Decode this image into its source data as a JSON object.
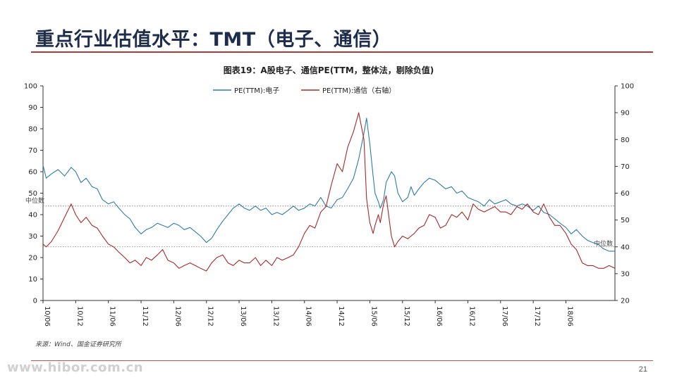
{
  "slide": {
    "title": "重点行业估值水平：TMT（电子、通信）",
    "page_number": "21",
    "watermark": "www.hibor.com.cn"
  },
  "chart_data": {
    "type": "line",
    "title": "图表19：A股电子、通信PE(TTM，整体法，剔除负值)",
    "source": "来源：Wind、国金证券研究所",
    "x_tick_labels": [
      "10/06",
      "10/12",
      "11/06",
      "11/12",
      "12/06",
      "12/12",
      "13/06",
      "13/12",
      "14/06",
      "14/12",
      "15/06",
      "15/12",
      "16/06",
      "16/12",
      "17/06",
      "17/12",
      "18/06"
    ],
    "x_range": [
      2010.42,
      2019.17
    ],
    "left_axis": {
      "range": [
        0,
        100
      ],
      "ticks": [
        0,
        10,
        20,
        30,
        40,
        50,
        60,
        70,
        80,
        90,
        100
      ]
    },
    "right_axis": {
      "range": [
        20,
        100
      ],
      "ticks": [
        20,
        30,
        40,
        50,
        60,
        70,
        80,
        90,
        100
      ]
    },
    "median_label": "中位数",
    "median_left": 44,
    "median_right": 40,
    "grid": false,
    "legend_position": "top",
    "series": [
      {
        "name": "PE(TTM):电子",
        "axis": "left",
        "color": "#2e7ca6",
        "x": [
          2010.42,
          2010.47,
          2010.55,
          2010.65,
          2010.75,
          2010.85,
          2010.92,
          2011.0,
          2011.08,
          2011.17,
          2011.25,
          2011.33,
          2011.42,
          2011.5,
          2011.58,
          2011.67,
          2011.75,
          2011.83,
          2011.92,
          2012.0,
          2012.08,
          2012.17,
          2012.25,
          2012.33,
          2012.42,
          2012.5,
          2012.58,
          2012.67,
          2012.75,
          2012.83,
          2012.92,
          2013.0,
          2013.08,
          2013.17,
          2013.25,
          2013.33,
          2013.42,
          2013.5,
          2013.58,
          2013.67,
          2013.75,
          2013.83,
          2013.92,
          2014.0,
          2014.08,
          2014.17,
          2014.25,
          2014.33,
          2014.42,
          2014.5,
          2014.58,
          2014.67,
          2014.75,
          2014.83,
          2014.92,
          2015.0,
          2015.08,
          2015.17,
          2015.25,
          2015.33,
          2015.37,
          2015.42,
          2015.47,
          2015.5,
          2015.55,
          2015.58,
          2015.63,
          2015.67,
          2015.75,
          2015.8,
          2015.85,
          2015.92,
          2016.0,
          2016.05,
          2016.1,
          2016.17,
          2016.25,
          2016.33,
          2016.42,
          2016.5,
          2016.58,
          2016.67,
          2016.75,
          2016.83,
          2016.92,
          2017.0,
          2017.08,
          2017.17,
          2017.25,
          2017.33,
          2017.42,
          2017.5,
          2017.58,
          2017.67,
          2017.75,
          2017.83,
          2017.92,
          2018.0,
          2018.08,
          2018.17,
          2018.25,
          2018.33,
          2018.42,
          2018.5,
          2018.58,
          2018.67,
          2018.75,
          2018.83,
          2018.92,
          2019.0,
          2019.08,
          2019.17
        ],
        "y": [
          63,
          57,
          59,
          61,
          58,
          62,
          60,
          55,
          57,
          53,
          52,
          47,
          45,
          46,
          43,
          40,
          38,
          34,
          31,
          33,
          34,
          36,
          35,
          34,
          36,
          35,
          33,
          34,
          32,
          30,
          27,
          29,
          33,
          37,
          40,
          43,
          45,
          43,
          42,
          44,
          42,
          43,
          40,
          41,
          40,
          42,
          44,
          42,
          43,
          45,
          44,
          48,
          44,
          43,
          47,
          48,
          52,
          57,
          66,
          78,
          85,
          73,
          58,
          50,
          46,
          43,
          47,
          55,
          60,
          58,
          50,
          46,
          48,
          53,
          49,
          52,
          55,
          57,
          56,
          54,
          52,
          53,
          50,
          51,
          48,
          47,
          46,
          44,
          47,
          45,
          46,
          47,
          45,
          44,
          45,
          44,
          42,
          44,
          41,
          40,
          38,
          36,
          34,
          31,
          33,
          30,
          28,
          27,
          26,
          24,
          23,
          23
        ]
      },
      {
        "name": "PE(TTM):通信（右轴）",
        "axis": "right",
        "color": "#a52a2a",
        "x": [
          2010.42,
          2010.47,
          2010.55,
          2010.65,
          2010.75,
          2010.85,
          2010.92,
          2011.0,
          2011.08,
          2011.17,
          2011.25,
          2011.33,
          2011.42,
          2011.5,
          2011.58,
          2011.67,
          2011.75,
          2011.83,
          2011.92,
          2012.0,
          2012.08,
          2012.17,
          2012.25,
          2012.33,
          2012.42,
          2012.5,
          2012.58,
          2012.67,
          2012.75,
          2012.83,
          2012.92,
          2013.0,
          2013.08,
          2013.17,
          2013.25,
          2013.33,
          2013.42,
          2013.5,
          2013.58,
          2013.67,
          2013.75,
          2013.83,
          2013.92,
          2014.0,
          2014.08,
          2014.17,
          2014.25,
          2014.33,
          2014.42,
          2014.5,
          2014.58,
          2014.67,
          2014.75,
          2014.83,
          2014.92,
          2015.0,
          2015.08,
          2015.17,
          2015.25,
          2015.33,
          2015.37,
          2015.42,
          2015.47,
          2015.5,
          2015.55,
          2015.58,
          2015.63,
          2015.67,
          2015.75,
          2015.8,
          2015.85,
          2015.92,
          2016.0,
          2016.05,
          2016.1,
          2016.17,
          2016.25,
          2016.33,
          2016.42,
          2016.5,
          2016.58,
          2016.67,
          2016.75,
          2016.83,
          2016.92,
          2017.0,
          2017.08,
          2017.17,
          2017.25,
          2017.33,
          2017.42,
          2017.5,
          2017.58,
          2017.67,
          2017.75,
          2017.83,
          2017.92,
          2018.0,
          2018.08,
          2018.17,
          2018.25,
          2018.33,
          2018.42,
          2018.5,
          2018.58,
          2018.67,
          2018.75,
          2018.83,
          2018.92,
          2019.0,
          2019.08,
          2019.17
        ],
        "y": [
          41,
          40,
          42,
          46,
          51,
          56,
          52,
          49,
          51,
          48,
          47,
          44,
          41,
          40,
          38,
          36,
          34,
          35,
          33,
          36,
          35,
          37,
          39,
          35,
          34,
          32,
          33,
          34,
          33,
          32,
          31,
          34,
          36,
          37,
          34,
          33,
          35,
          34,
          34,
          36,
          33,
          35,
          33,
          36,
          35,
          36,
          37,
          40,
          45,
          48,
          47,
          53,
          55,
          63,
          71,
          68,
          77,
          83,
          90,
          80,
          58,
          49,
          45,
          48,
          52,
          49,
          56,
          59,
          44,
          40,
          42,
          44,
          43,
          44,
          45,
          47,
          48,
          52,
          51,
          47,
          48,
          52,
          51,
          53,
          50,
          56,
          54,
          53,
          54,
          55,
          53,
          53,
          52,
          55,
          54,
          56,
          53,
          52,
          56,
          51,
          48,
          48,
          45,
          41,
          39,
          34,
          33,
          33,
          32,
          32,
          33,
          32
        ]
      }
    ]
  }
}
